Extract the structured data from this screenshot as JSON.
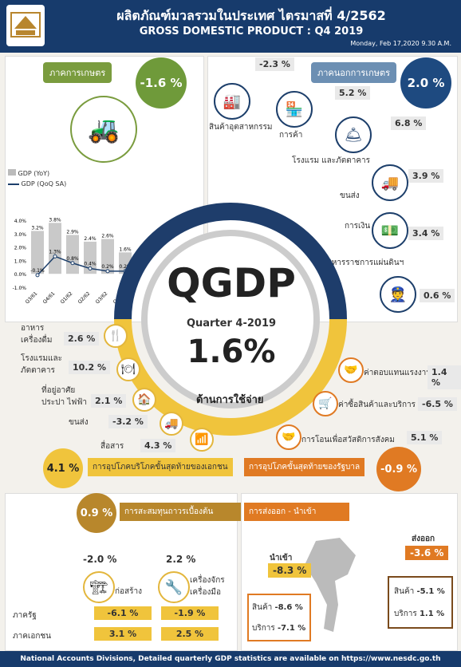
{
  "header": {
    "title_th": "ผลิตภัณฑ์มวลรวมในประเทศ ไตรมาสที่ 4/2562",
    "title_en": "GROSS DOMESTIC PRODUCT : Q4 2019",
    "date": "Monday, Feb 17,2020 9.30 A.M."
  },
  "agri": {
    "label": "ภาคการเกษตร",
    "value": "-1.6 %"
  },
  "nonagri": {
    "label": "ภาคนอกการเกษตร",
    "value": "2.0 %"
  },
  "production_label": "ด้านการผลิต",
  "expenditure_label": "ด้านการใช้จ่าย",
  "sectors": [
    {
      "label": "สินค้าอุตสาหกรรม",
      "value": "-2.3 %"
    },
    {
      "label": "การค้า",
      "value": "5.2 %"
    },
    {
      "label": "โรงแรม และภัตตาคาร",
      "value": "6.8 %"
    },
    {
      "label": "ขนส่ง",
      "value": "3.9 %"
    },
    {
      "label": "การเงิน",
      "value": "3.4 %"
    },
    {
      "label": "บริหารราชการแผ่นดินฯ",
      "value": "0.6 %"
    }
  ],
  "qgdp": {
    "title": "QGDP",
    "quarter": "Quarter 4-2019",
    "value": "1.6%"
  },
  "chart_data": {
    "type": "bar",
    "categories": [
      "Q3/61",
      "Q4/61",
      "Q1/62",
      "Q2/62",
      "Q3/62",
      "Q4/62"
    ],
    "series": [
      {
        "name": "GDP (YoY)",
        "values": [
          3.2,
          3.8,
          2.9,
          2.4,
          2.6,
          1.6
        ]
      },
      {
        "name": "GDP (QoQ SA)",
        "values": [
          -0.1,
          1.3,
          0.8,
          0.4,
          0.2,
          0.2
        ]
      }
    ],
    "bar_labels": [
      "3.2%",
      "3.8%",
      "2.9%",
      "2.4%",
      "2.6%",
      "1.6%"
    ],
    "line_labels": [
      "-0.1%",
      "1.3%",
      "0.8%",
      "0.4%",
      "0.2%",
      "0.2%"
    ],
    "yticks": [
      "4.0%",
      "3.0%",
      "2.0%",
      "1.0%",
      "0.0%",
      "-1.0%"
    ],
    "ylim": [
      -1,
      4
    ]
  },
  "private": [
    {
      "label": "อาหาร เครื่องดื่ม",
      "value": "2.6 %"
    },
    {
      "label": "โรงแรมและ ภัตตาคาร",
      "value": "10.2 %"
    },
    {
      "label": "ที่อยู่อาศัย ประปา ไฟฟ้า",
      "value": "2.1 %"
    },
    {
      "label": "ขนส่ง",
      "value": "-3.2 %"
    },
    {
      "label": "สื่อสาร",
      "value": "4.3 %"
    }
  ],
  "private_total": {
    "label": "การอุปโภคบริโภคขั้นสุดท้ายของเอกชน",
    "value": "4.1 %"
  },
  "gov": [
    {
      "label": "ค่าตอบแทนแรงงาน",
      "value": "1.4 %"
    },
    {
      "label": "ค่าซื้อสินค้าและบริการ",
      "value": "-6.5 %"
    },
    {
      "label": "การโอนเพื่อสวัสดิการสังคม",
      "value": "5.1 %"
    }
  ],
  "gov_total": {
    "label": "การอุปโภคขั้นสุดท้ายของรัฐบาล",
    "value": "-0.9 %"
  },
  "invest": {
    "label": "การสะสมทุนถาวรเบื้องต้น",
    "value": "0.9 %",
    "construct_label": "ก่อสร้าง",
    "construct": "-2.0 %",
    "machine_label": "เครื่องจักร เครื่องมือ",
    "machine": "2.2 %",
    "public_label": "ภาครัฐ",
    "private_label": "ภาคเอกชน",
    "public_c": "-6.1 %",
    "public_m": "-1.9 %",
    "private_c": "3.1 %",
    "private_m": "2.5 %"
  },
  "trade": {
    "label": "การส่งออก - นำเข้า",
    "export_label": "ส่งออก",
    "export": "-3.6 %",
    "import_label": "นำเข้า",
    "import": "-8.3 %",
    "ex_goods_label": "สินค้า",
    "ex_goods": "-5.1 %",
    "ex_serv_label": "บริการ",
    "ex_serv": "1.1 %",
    "im_goods_label": "สินค้า",
    "im_goods": "-8.6 %",
    "im_serv_label": "บริการ",
    "im_serv": "-7.1 %"
  },
  "footer": "National Accounts Divisions, Detailed quarterly GDP statistics are available on https://www.nesdc.go.th"
}
